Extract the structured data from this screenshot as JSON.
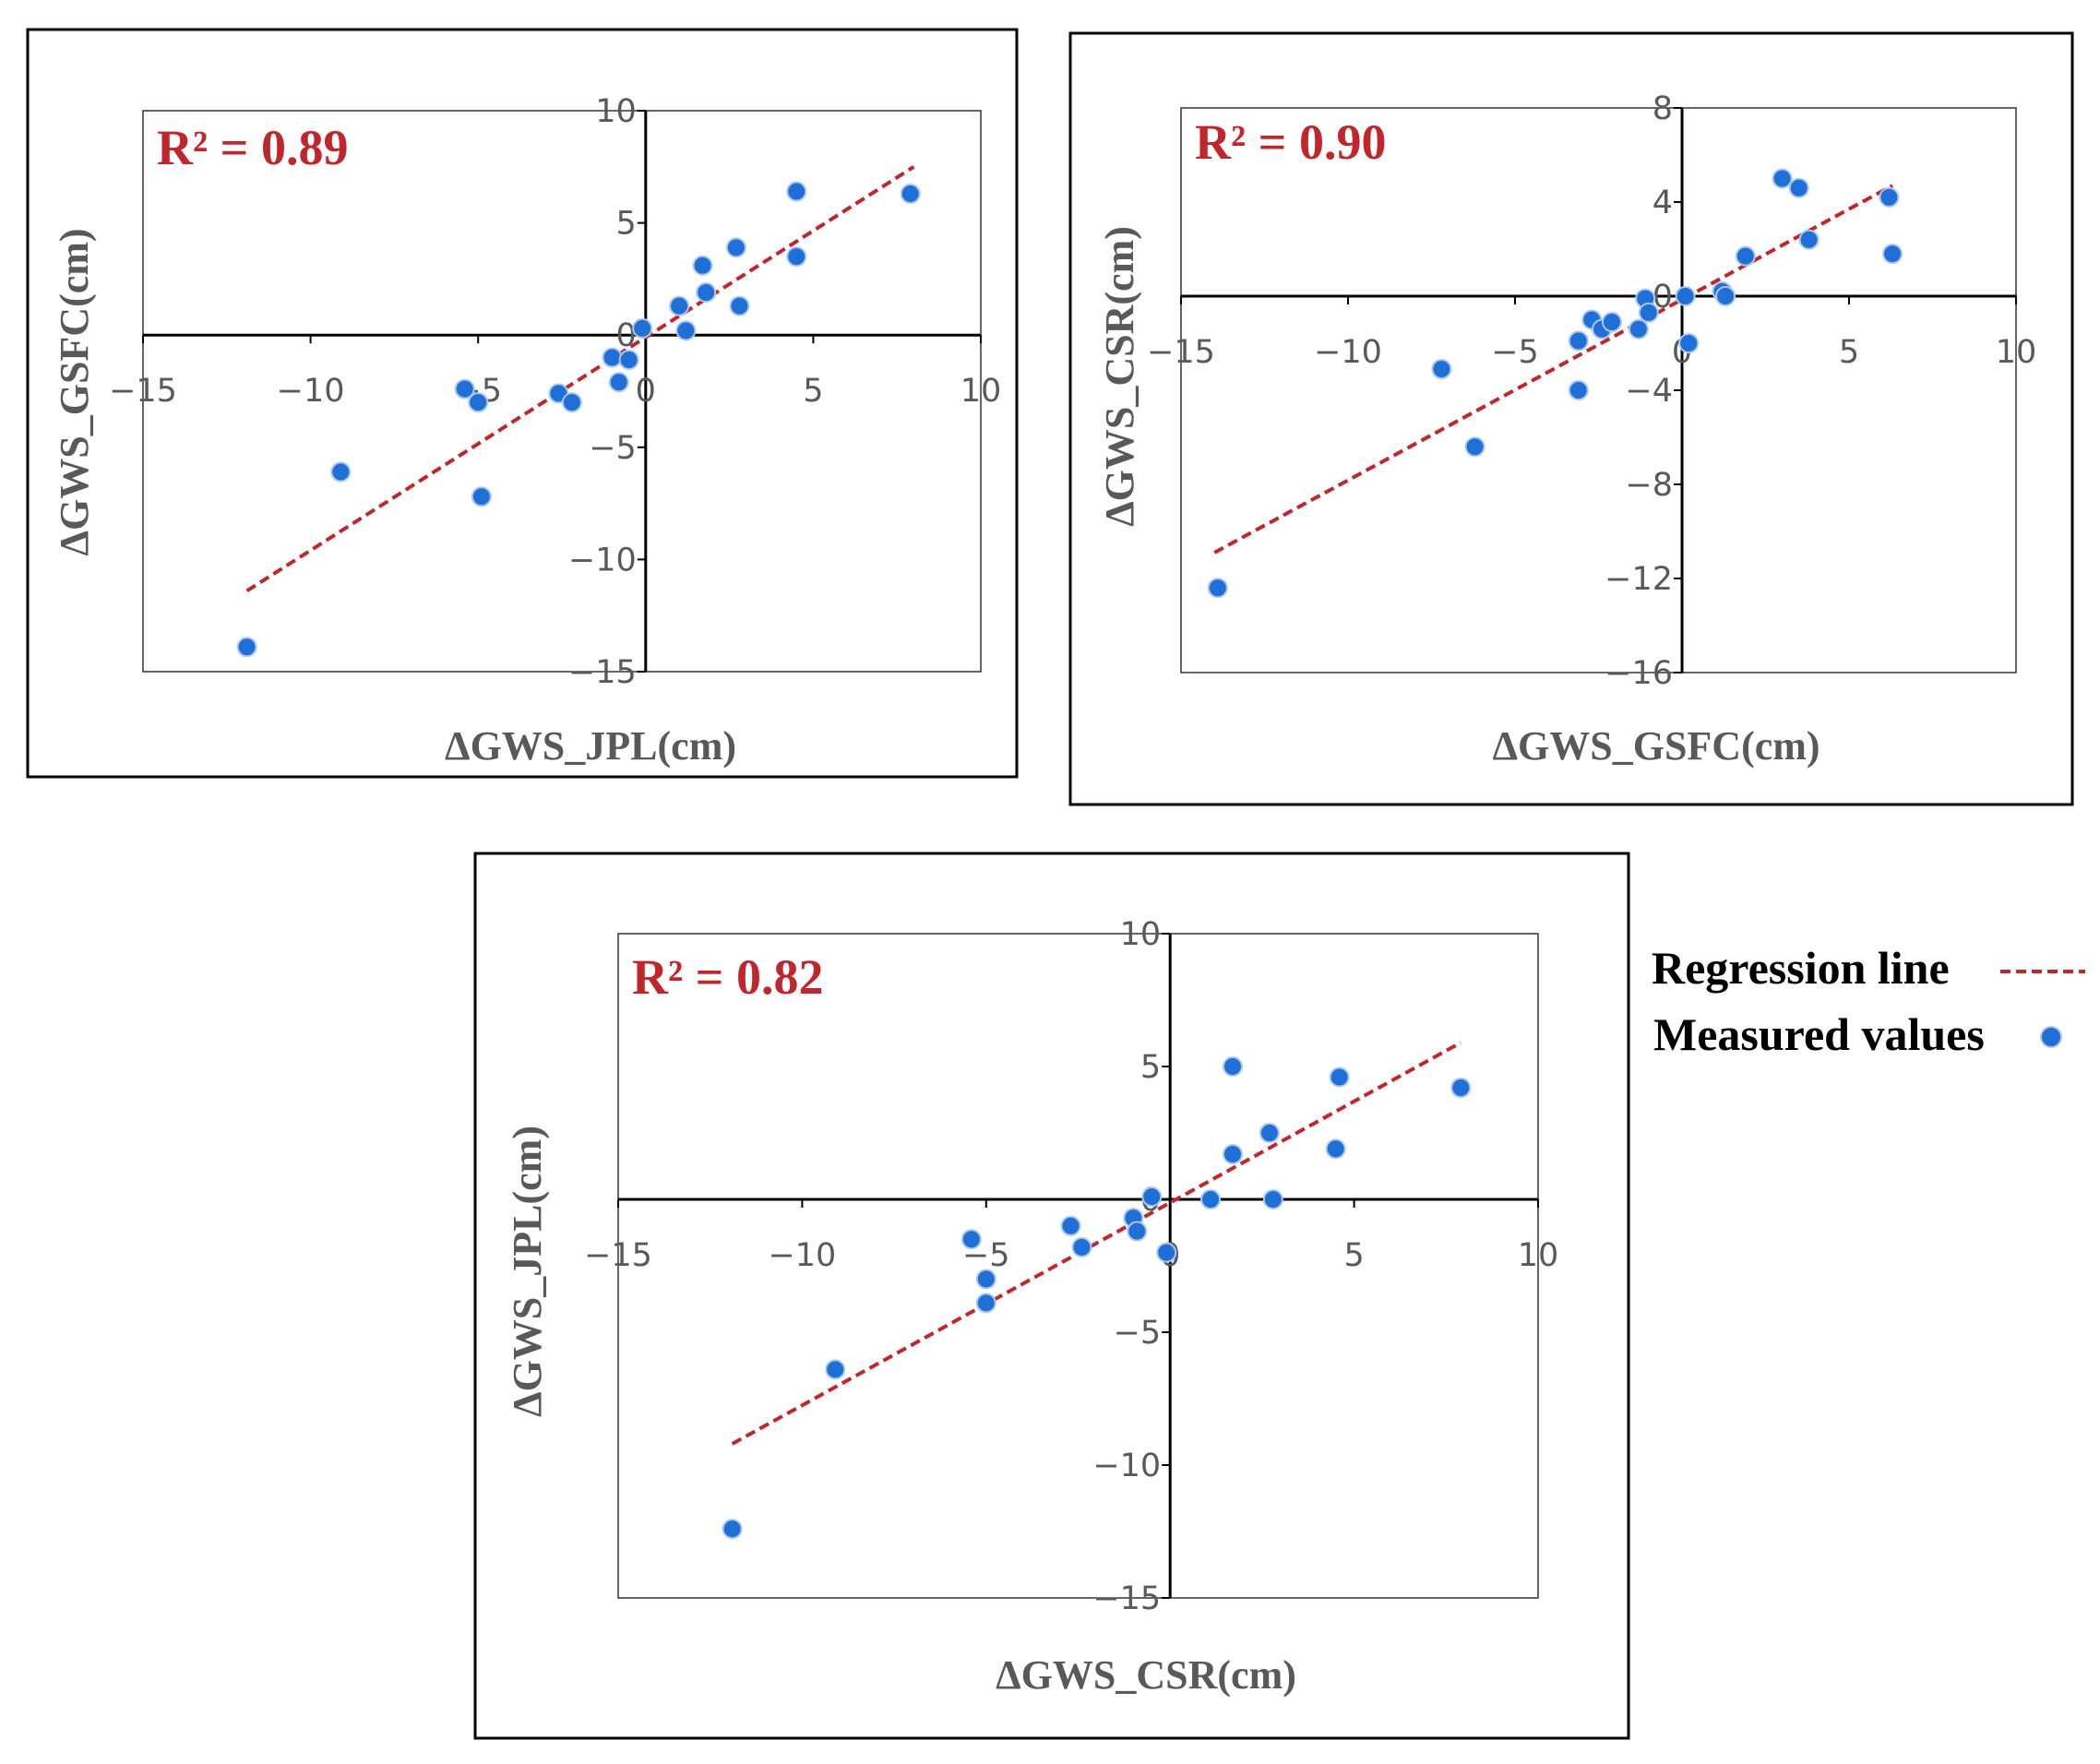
{
  "colors": {
    "point": "#1f6fd6",
    "regression": "#c0272d",
    "r2": "#c0272d",
    "axis": "#000000",
    "frame": "#000000"
  },
  "legend": {
    "regression_label": "Regression line",
    "measured_label": "Measured values"
  },
  "chart_data": [
    {
      "type": "scatter",
      "id": "jpl-gsfc",
      "r2_label": "R² = 0.89",
      "xlabel": "ΔGWS_JPL(cm)",
      "ylabel": "ΔGWS_GSFC(cm)",
      "xlim": [
        -15,
        10
      ],
      "ylim": [
        -15,
        10
      ],
      "xticks": [
        -15,
        -10,
        -5,
        0,
        5,
        10
      ],
      "yticks": [
        -15,
        -10,
        -5,
        0,
        5,
        10
      ],
      "xtick_labels": [
        "−15",
        "−10",
        "−5",
        "0",
        "5",
        "10"
      ],
      "ytick_labels": [
        "−15",
        "−10",
        "−5",
        "0",
        "5",
        "10"
      ],
      "points": [
        [
          -11.9,
          -13.9
        ],
        [
          -9.1,
          -6.1
        ],
        [
          -5.4,
          -2.4
        ],
        [
          -5.0,
          -3.0
        ],
        [
          -4.9,
          -7.2
        ],
        [
          -2.6,
          -2.6
        ],
        [
          -2.2,
          -3.0
        ],
        [
          -1.0,
          -1.0
        ],
        [
          -0.8,
          -2.1
        ],
        [
          -0.5,
          -1.1
        ],
        [
          -0.1,
          0.3
        ],
        [
          1.0,
          1.3
        ],
        [
          1.2,
          0.2
        ],
        [
          1.7,
          3.1
        ],
        [
          1.8,
          1.9
        ],
        [
          2.7,
          3.9
        ],
        [
          2.8,
          1.3
        ],
        [
          4.5,
          6.4
        ],
        [
          4.5,
          3.5
        ],
        [
          7.9,
          6.3
        ]
      ],
      "regression": [
        [
          -11.9,
          -11.4
        ],
        [
          8.0,
          7.5
        ]
      ]
    },
    {
      "type": "scatter",
      "id": "gsfc-csr",
      "r2_label": "R² = 0.90",
      "xlabel": "ΔGWS_GSFC(cm)",
      "ylabel": "ΔGWS_CSR(cm)",
      "xlim": [
        -15,
        10
      ],
      "ylim": [
        -16,
        8
      ],
      "xticks": [
        -15,
        -10,
        -5,
        0,
        5,
        10
      ],
      "yticks": [
        -16,
        -12,
        -8,
        -4,
        0,
        4,
        8
      ],
      "xtick_labels": [
        "−15",
        "−10",
        "−5",
        "0",
        "5",
        "10"
      ],
      "ytick_labels": [
        "−16",
        "−12",
        "−8",
        "−4",
        "0",
        "4",
        "8"
      ],
      "points": [
        [
          -13.9,
          -12.4
        ],
        [
          -7.2,
          -3.1
        ],
        [
          -6.2,
          -6.4
        ],
        [
          -3.1,
          -1.9
        ],
        [
          -3.1,
          -4.0
        ],
        [
          -2.7,
          -1.0
        ],
        [
          -2.4,
          -1.4
        ],
        [
          -2.1,
          -1.1
        ],
        [
          -1.3,
          -1.4
        ],
        [
          -1.1,
          -0.1
        ],
        [
          -1.0,
          -0.7
        ],
        [
          0.1,
          0.0
        ],
        [
          0.2,
          -2.0
        ],
        [
          1.2,
          0.2
        ],
        [
          1.3,
          0.0
        ],
        [
          1.9,
          1.7
        ],
        [
          3.0,
          5.0
        ],
        [
          3.5,
          4.6
        ],
        [
          3.8,
          2.4
        ],
        [
          6.2,
          4.2
        ],
        [
          6.3,
          1.8
        ]
      ],
      "regression": [
        [
          -14.0,
          -10.9
        ],
        [
          6.3,
          4.7
        ]
      ]
    },
    {
      "type": "scatter",
      "id": "csr-jpl",
      "r2_label": "R² = 0.82",
      "xlabel": "ΔGWS_CSR(cm)",
      "ylabel": "ΔGWS_JPL(cm)",
      "xlim": [
        -15,
        10
      ],
      "ylim": [
        -15,
        10
      ],
      "xticks": [
        -15,
        -10,
        -5,
        0,
        5,
        10
      ],
      "yticks": [
        -15,
        -10,
        -5,
        0,
        5,
        10
      ],
      "xtick_labels": [
        "−15",
        "−10",
        "−5",
        "0",
        "5",
        "10"
      ],
      "ytick_labels": [
        "−15",
        "−10",
        "−5",
        "0",
        "5",
        "10"
      ],
      "points": [
        [
          -11.9,
          -12.4
        ],
        [
          -9.1,
          -6.4
        ],
        [
          -5.4,
          -1.5
        ],
        [
          -5.0,
          -3.0
        ],
        [
          -5.0,
          -3.9
        ],
        [
          -2.7,
          -1.0
        ],
        [
          -2.4,
          -1.8
        ],
        [
          -1.0,
          -0.7
        ],
        [
          -0.9,
          -1.2
        ],
        [
          -0.5,
          0.1
        ],
        [
          -0.1,
          -2.0
        ],
        [
          1.1,
          0.0
        ],
        [
          1.7,
          5.0
        ],
        [
          1.7,
          1.7
        ],
        [
          2.7,
          2.5
        ],
        [
          2.8,
          0.0
        ],
        [
          4.5,
          1.9
        ],
        [
          4.6,
          4.6
        ],
        [
          7.9,
          4.2
        ]
      ],
      "regression": [
        [
          -11.9,
          -9.2
        ],
        [
          7.9,
          5.9
        ]
      ]
    }
  ]
}
